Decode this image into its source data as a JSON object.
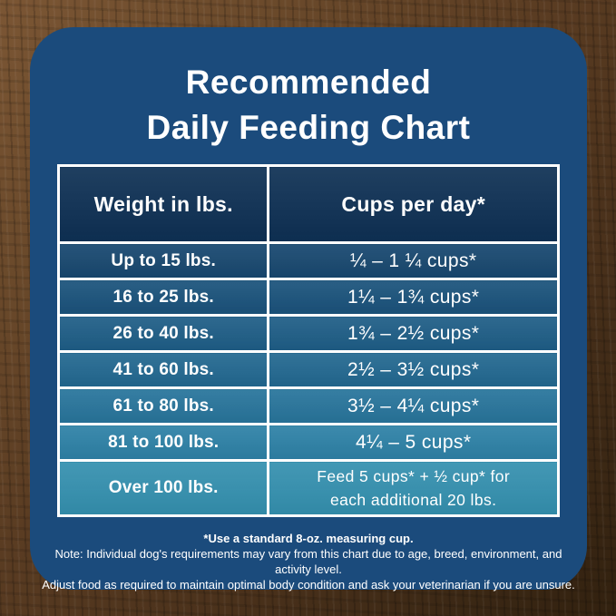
{
  "card": {
    "background": "#1b4b7c",
    "title_line1": "Recommended",
    "title_line2": "Daily Feeding Chart"
  },
  "chart_data": {
    "type": "table",
    "title": "Recommended Daily Feeding Chart",
    "columns": [
      "Weight in lbs.",
      "Cups per day*"
    ],
    "rows": [
      {
        "weight": "Up to 15 lbs.",
        "cups": "¼ – 1 ¼ cups*"
      },
      {
        "weight": "16 to 25 lbs.",
        "cups": "1¼ – 1¾  cups*"
      },
      {
        "weight": "26 to 40 lbs.",
        "cups": "1¾ – 2½ cups*"
      },
      {
        "weight": "41 to 60 lbs.",
        "cups": "2½ – 3½ cups*"
      },
      {
        "weight": "61 to 80 lbs.",
        "cups": "3½ – 4¼ cups*"
      },
      {
        "weight": "81 to 100 lbs.",
        "cups": "4¼ – 5 cups*"
      },
      {
        "weight": "Over 100 lbs.",
        "cups_line1": "Feed 5 cups* + ½ cup* for",
        "cups_line2": "each additional 20 lbs."
      }
    ],
    "header_bg": "#0e3054",
    "row_colors": [
      "#17476f",
      "#1a527b",
      "#1e5d86",
      "#226890",
      "#27749b",
      "#2d81a6",
      "#3490af"
    ],
    "border_color": "#ffffff",
    "layout_hints": {
      "grid": "white cell borders",
      "column_align": "center"
    }
  },
  "footnotes": {
    "line1": "*Use a standard 8-oz. measuring cup.",
    "line2": "Note: Individual dog's requirements may vary from this chart due to age, breed, environment, and activity level.",
    "line3": "Adjust food as required to maintain optimal body condition and ask your veterinarian if you are unsure."
  }
}
